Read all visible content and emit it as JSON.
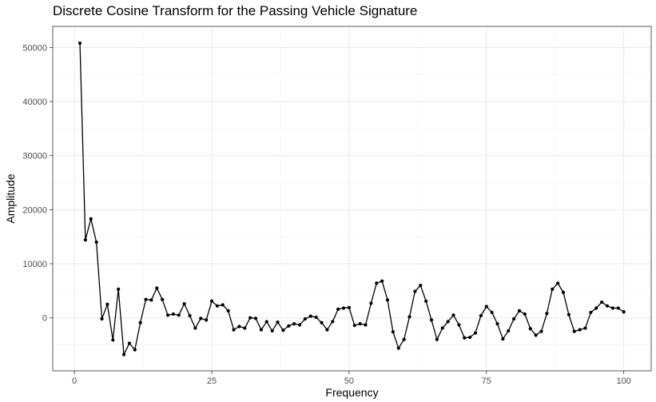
{
  "chart_data": {
    "type": "line",
    "title": "Discrete Cosine Transform for the Passing Vehicle Signature",
    "xlabel": "Frequency",
    "ylabel": "Amplitude",
    "xlim": [
      -3.95,
      105
    ],
    "ylim": [
      -9800,
      53900
    ],
    "xticks": [
      0,
      25,
      50,
      75,
      100
    ],
    "yticks": [
      0,
      10000,
      20000,
      30000,
      40000,
      50000
    ],
    "grid": true,
    "legend": "none",
    "series": [
      {
        "name": "Amplitude",
        "color": "#000000",
        "x": [
          1,
          2,
          3,
          4,
          5,
          6,
          7,
          8,
          9,
          10,
          11,
          12,
          13,
          14,
          15,
          16,
          17,
          18,
          19,
          20,
          21,
          22,
          23,
          24,
          25,
          26,
          27,
          28,
          29,
          30,
          31,
          32,
          33,
          34,
          35,
          36,
          37,
          38,
          39,
          40,
          41,
          42,
          43,
          44,
          45,
          46,
          47,
          48,
          49,
          50,
          51,
          52,
          53,
          54,
          55,
          56,
          57,
          58,
          59,
          60,
          61,
          62,
          63,
          64,
          65,
          66,
          67,
          68,
          69,
          70,
          71,
          72,
          73,
          74,
          75,
          76,
          77,
          78,
          79,
          80,
          81,
          82,
          83,
          84,
          85,
          86,
          87,
          88,
          89,
          90,
          91,
          92,
          93,
          94,
          95,
          96,
          97,
          98,
          99,
          100
        ],
        "values": [
          50800,
          14400,
          18300,
          14000,
          -200,
          2500,
          -4100,
          5300,
          -6800,
          -4700,
          -5900,
          -900,
          3400,
          3300,
          5500,
          3400,
          500,
          700,
          500,
          2600,
          400,
          -1900,
          -100,
          -400,
          3100,
          2200,
          2400,
          1300,
          -2200,
          -1600,
          -1900,
          0,
          -100,
          -2200,
          -700,
          -2400,
          -800,
          -2300,
          -1500,
          -1100,
          -1300,
          -200,
          300,
          100,
          -900,
          -2200,
          -700,
          1600,
          1800,
          1900,
          -1400,
          -1100,
          -1300,
          2700,
          6400,
          6800,
          3300,
          -2600,
          -5600,
          -4000,
          200,
          4900,
          6000,
          3100,
          -400,
          -4000,
          -1900,
          -700,
          500,
          -1300,
          -3700,
          -3600,
          -2800,
          400,
          2100,
          1000,
          -1100,
          -3900,
          -2400,
          -200,
          1300,
          700,
          -2000,
          -3200,
          -2500,
          800,
          5300,
          6400,
          4700,
          600,
          -2500,
          -2200,
          -1900,
          1000,
          1800,
          2900,
          2200,
          1800,
          1800,
          1100
        ]
      }
    ]
  }
}
